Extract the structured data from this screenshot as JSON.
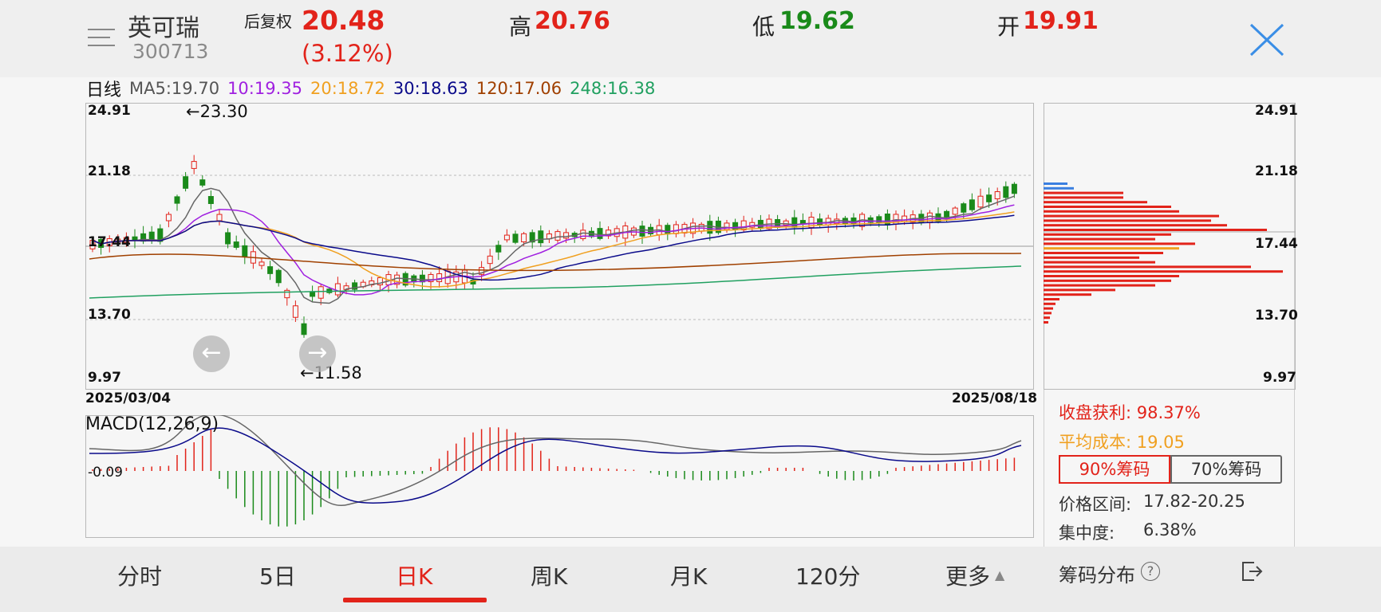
{
  "header": {
    "stock_name": "英可瑞",
    "stock_code": "300713",
    "adjustment": "后复权",
    "price": "20.48",
    "change_pct": "(3.12%)",
    "high_label": "高",
    "high_value": "20.76",
    "low_label": "低",
    "low_value": "19.62",
    "open_label": "开",
    "open_value": "19.91"
  },
  "ma_legend": {
    "period": "日线",
    "ma5": "MA5:19.70",
    "ma10": "10:19.35",
    "ma20": "20:18.72",
    "ma30": "30:18.63",
    "ma120": "120:17.06",
    "ma248": "248:16.38"
  },
  "kline": {
    "y_ticks": [
      "24.91",
      "21.18",
      "17.44",
      "13.70",
      "9.97"
    ],
    "max_annotation": "←23.30",
    "min_annotation": "←11.58",
    "start_date": "2025/03/04",
    "end_date": "2025/08/18"
  },
  "macd": {
    "title": "MACD(12,26,9)",
    "value_label": "-0.09"
  },
  "chips": {
    "y_ticks": [
      "24.91",
      "21.18",
      "17.44",
      "13.70",
      "9.97"
    ],
    "profit_label": "收盘获利: 98.37%",
    "avg_cost_label": "平均成本: 19.05",
    "btn_90": "90%筹码",
    "btn_70": "70%筹码",
    "price_range_label": "价格区间:",
    "price_range_value": "17.82-20.25",
    "concentration_label": "集中度:",
    "concentration_value": "6.38%",
    "footer_title": "筹码分布"
  },
  "tabs": {
    "t1": "分时",
    "t2": "5日",
    "t3": "日K",
    "t4": "周K",
    "t5": "月K",
    "t6": "120分",
    "t7": "更多"
  },
  "colors": {
    "up": "#e2231a",
    "down": "#1a8a1a",
    "ma5": "#666666",
    "ma10": "#a020e0",
    "ma20": "#f0a020",
    "ma30": "#0a0a8a",
    "ma120": "#a04000",
    "ma248": "#20a060"
  }
}
